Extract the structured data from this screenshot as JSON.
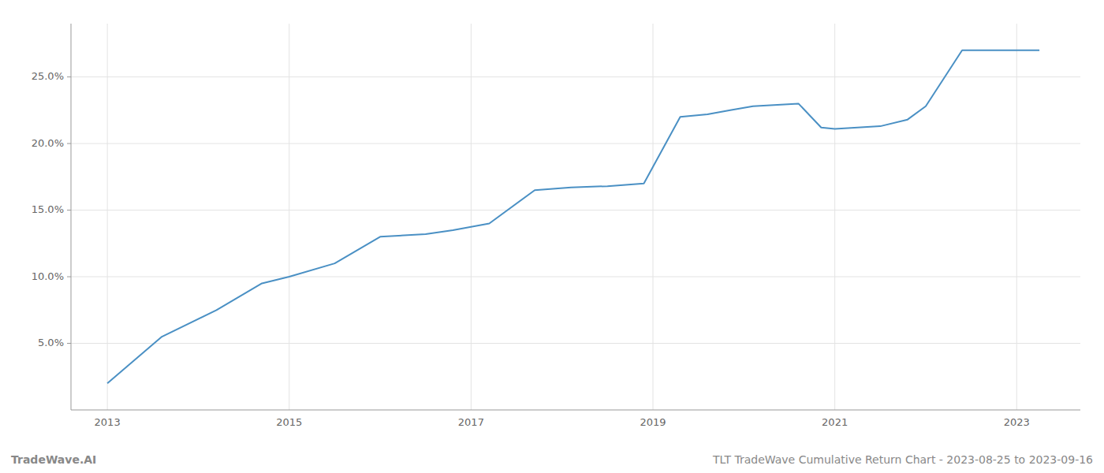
{
  "chart_data": {
    "type": "line",
    "x": [
      2013.0,
      2013.6,
      2014.2,
      2014.7,
      2015.0,
      2015.5,
      2016.0,
      2016.5,
      2016.8,
      2017.2,
      2017.7,
      2018.1,
      2018.5,
      2018.9,
      2019.3,
      2019.6,
      2019.85,
      2020.1,
      2020.6,
      2020.85,
      2021.0,
      2021.5,
      2021.8,
      2022.0,
      2022.4,
      2022.7,
      2023.0,
      2023.25
    ],
    "values": [
      2.0,
      5.5,
      7.5,
      9.5,
      10.0,
      11.0,
      13.0,
      13.2,
      13.5,
      14.0,
      16.5,
      16.7,
      16.8,
      17.0,
      22.0,
      22.2,
      22.5,
      22.8,
      23.0,
      21.2,
      21.1,
      21.3,
      21.8,
      22.8,
      27.0,
      27.0,
      27.0,
      27.0
    ],
    "color": "#4a90c4",
    "xlim": [
      2012.6,
      2023.7
    ],
    "xticks": [
      2013,
      2015,
      2017,
      2019,
      2021,
      2023
    ],
    "ylim": [
      0,
      29
    ],
    "yticks": [
      {
        "value": 5.0,
        "label": "5.0%"
      },
      {
        "value": 10.0,
        "label": "10.0%"
      },
      {
        "value": 15.0,
        "label": "15.0%"
      },
      {
        "value": 20.0,
        "label": "20.0%"
      },
      {
        "value": 25.0,
        "label": "25.0%"
      }
    ],
    "grid": true,
    "annotations": [
      "TradeWave.AI",
      "TLT TradeWave Cumulative Return Chart - 2023-08-25 to 2023-09-16"
    ]
  }
}
